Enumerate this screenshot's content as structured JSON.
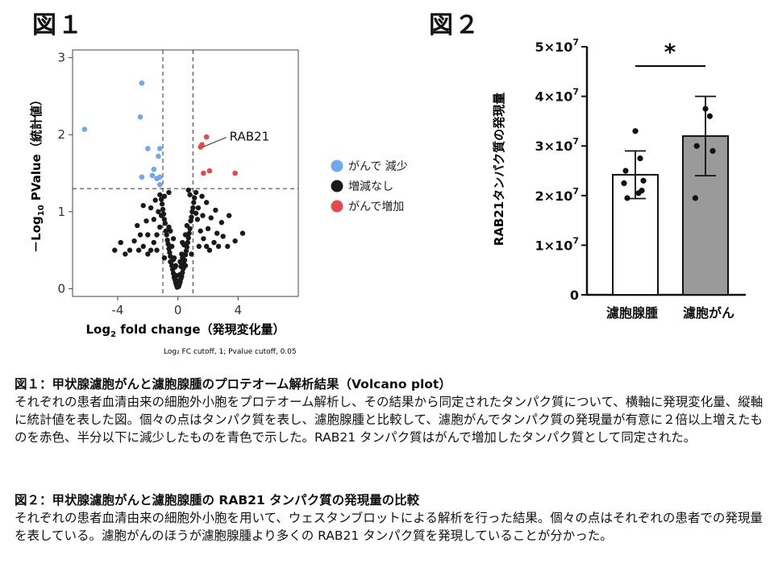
{
  "figure_labels": {
    "fig1": "図１",
    "fig2": "図２"
  },
  "chart_data": [
    {
      "type": "scatter",
      "title": "",
      "xlabel": "Log₂ fold change（発現変化量）",
      "xlabel_parts": {
        "pre": "Log",
        "sub": "2",
        "post": " fold change（発現変化量）"
      },
      "ylabel": "－Log₁₀ PValue（統計値）",
      "ylabel_parts": {
        "pre": "－Log",
        "sub": "10",
        "post": " PValue（統計値）"
      },
      "xlim": [
        -7,
        8
      ],
      "ylim": [
        -0.1,
        3.1
      ],
      "xticks": [
        -4,
        0,
        4
      ],
      "yticks": [
        0,
        1,
        2,
        3
      ],
      "cutoffs": {
        "fc": [
          -1,
          1
        ],
        "pvalue_log": 1.3
      },
      "footnote": "Log₂ FC cutoff, 1; Pvalue cutoff, 0.05",
      "annotation": {
        "label": "RAB21",
        "x": 1.5,
        "y": 1.84
      },
      "legend_position": "right",
      "series": [
        {
          "name": "がんで 減少",
          "color": "#6fa8f0",
          "points": [
            [
              -6.2,
              2.07
            ],
            [
              -2.4,
              2.67
            ],
            [
              -2.5,
              2.23
            ],
            [
              -1.2,
              1.82
            ],
            [
              -1.3,
              1.72
            ],
            [
              -2.0,
              1.82
            ],
            [
              -2.4,
              1.45
            ],
            [
              -1.7,
              1.47
            ],
            [
              -1.4,
              1.43
            ],
            [
              -1.2,
              1.45
            ],
            [
              -1.6,
              1.55
            ],
            [
              -1.2,
              1.35
            ]
          ]
        },
        {
          "name": "増減なし",
          "color": "#1a1a1a",
          "points": [
            [
              -0.05,
              0.02
            ],
            [
              0.05,
              0.03
            ],
            [
              -0.1,
              0.05
            ],
            [
              0.1,
              0.06
            ],
            [
              -0.15,
              0.08
            ],
            [
              0.15,
              0.09
            ],
            [
              0.0,
              0.1
            ],
            [
              -0.2,
              0.12
            ],
            [
              0.2,
              0.13
            ],
            [
              -0.25,
              0.15
            ],
            [
              0.25,
              0.16
            ],
            [
              -0.1,
              0.17
            ],
            [
              0.1,
              0.18
            ],
            [
              -0.3,
              0.2
            ],
            [
              0.3,
              0.21
            ],
            [
              -0.35,
              0.25
            ],
            [
              0.35,
              0.26
            ],
            [
              -0.2,
              0.28
            ],
            [
              0.2,
              0.29
            ],
            [
              -0.4,
              0.3
            ],
            [
              0.4,
              0.32
            ],
            [
              -0.45,
              0.35
            ],
            [
              0.45,
              0.37
            ],
            [
              -0.3,
              0.38
            ],
            [
              0.3,
              0.4
            ],
            [
              -0.5,
              0.42
            ],
            [
              0.5,
              0.44
            ],
            [
              -0.55,
              0.47
            ],
            [
              0.55,
              0.49
            ],
            [
              -0.6,
              0.52
            ],
            [
              0.6,
              0.54
            ],
            [
              -0.4,
              0.55
            ],
            [
              0.4,
              0.57
            ],
            [
              -0.65,
              0.58
            ],
            [
              0.65,
              0.6
            ],
            [
              -0.7,
              0.63
            ],
            [
              0.7,
              0.66
            ],
            [
              -0.75,
              0.7
            ],
            [
              0.75,
              0.72
            ],
            [
              -0.8,
              0.75
            ],
            [
              0.8,
              0.78
            ],
            [
              -0.6,
              0.8
            ],
            [
              0.6,
              0.82
            ],
            [
              -0.85,
              0.85
            ],
            [
              0.85,
              0.88
            ],
            [
              -0.9,
              0.9
            ],
            [
              0.9,
              0.93
            ],
            [
              -0.95,
              0.97
            ],
            [
              0.95,
              1.0
            ],
            [
              -1.0,
              1.03
            ],
            [
              1.0,
              1.05
            ],
            [
              -1.05,
              1.1
            ],
            [
              1.05,
              1.12
            ],
            [
              -1.1,
              1.16
            ],
            [
              1.1,
              1.18
            ],
            [
              -1.2,
              1.22
            ],
            [
              1.2,
              1.25
            ],
            [
              -0.5,
              0.35
            ],
            [
              0.5,
              0.3
            ],
            [
              -0.25,
              0.4
            ],
            [
              0.25,
              0.45
            ],
            [
              -1.2,
              0.8
            ],
            [
              1.3,
              0.9
            ],
            [
              -1.4,
              0.7
            ],
            [
              1.5,
              0.75
            ],
            [
              -1.6,
              0.6
            ],
            [
              1.7,
              0.65
            ],
            [
              -1.8,
              0.5
            ],
            [
              1.9,
              0.55
            ],
            [
              -2.0,
              0.45
            ],
            [
              2.1,
              0.5
            ],
            [
              -2.3,
              0.55
            ],
            [
              2.4,
              0.6
            ],
            [
              -2.6,
              0.5
            ],
            [
              2.7,
              0.55
            ],
            [
              -2.9,
              0.62
            ],
            [
              3.0,
              0.68
            ],
            [
              -3.2,
              0.5
            ],
            [
              3.3,
              0.55
            ],
            [
              -3.5,
              0.45
            ],
            [
              -3.8,
              0.6
            ],
            [
              3.8,
              0.62
            ],
            [
              -4.2,
              0.5
            ],
            [
              4.3,
              0.72
            ],
            [
              -2.1,
              0.88
            ],
            [
              2.2,
              0.92
            ],
            [
              -1.8,
              1.05
            ],
            [
              1.9,
              1.12
            ],
            [
              -1.5,
              1.15
            ],
            [
              1.6,
              1.2
            ],
            [
              -2.3,
              1.08
            ],
            [
              2.5,
              1.02
            ],
            [
              -2.7,
              0.82
            ],
            [
              2.9,
              0.86
            ],
            [
              3.4,
              0.95
            ],
            [
              -1.1,
              0.95
            ],
            [
              1.2,
              0.98
            ],
            [
              -0.9,
              1.2
            ],
            [
              0.8,
              1.22
            ],
            [
              -0.6,
              1.25
            ],
            [
              0.7,
              1.28
            ],
            [
              -1.3,
              1.0
            ],
            [
              1.35,
              1.05
            ],
            [
              -1.6,
              0.9
            ],
            [
              1.65,
              0.95
            ],
            [
              -2.0,
              0.7
            ],
            [
              2.0,
              0.78
            ],
            [
              -2.5,
              0.7
            ],
            [
              2.6,
              0.72
            ],
            [
              0.3,
              0.6
            ],
            [
              -0.3,
              0.65
            ],
            [
              0.5,
              0.7
            ],
            [
              -0.5,
              0.75
            ],
            [
              0.15,
              0.35
            ],
            [
              -0.15,
              0.3
            ],
            [
              1.4,
              0.55
            ],
            [
              -1.4,
              0.5
            ],
            [
              0.9,
              0.45
            ],
            [
              -0.9,
              0.4
            ]
          ]
        },
        {
          "name": "がんで増加",
          "color": "#e8474b",
          "points": [
            [
              1.5,
              1.84
            ],
            [
              1.9,
              1.97
            ],
            [
              1.6,
              1.87
            ],
            [
              2.1,
              1.53
            ],
            [
              1.7,
              1.5
            ],
            [
              3.8,
              1.5
            ]
          ]
        }
      ]
    },
    {
      "type": "bar",
      "title": "",
      "xlabel": "",
      "ylabel": "RAB21タンパク質の発現量",
      "ylim": [
        0,
        50000000
      ],
      "yticks": [
        0,
        10000000,
        20000000,
        30000000,
        40000000,
        50000000
      ],
      "ytick_labels": [
        {
          "value": 0,
          "mant": "0",
          "exp": ""
        },
        {
          "value": 10000000,
          "mant": "1×10",
          "exp": "7"
        },
        {
          "value": 20000000,
          "mant": "2×10",
          "exp": "7"
        },
        {
          "value": 30000000,
          "mant": "3×10",
          "exp": "7"
        },
        {
          "value": 40000000,
          "mant": "4×10",
          "exp": "7"
        },
        {
          "value": 50000000,
          "mant": "5×10",
          "exp": "7"
        }
      ],
      "categories": [
        "濾胞腺腫",
        "濾胞がん"
      ],
      "values": [
        24200000,
        32000000
      ],
      "errors": [
        4800000,
        8000000
      ],
      "bar_colors": [
        "#ffffff",
        "#9a9a9a"
      ],
      "points": [
        [
          33000000,
          27500000,
          25000000,
          23000000,
          22500000,
          21000000,
          19500000,
          20500000
        ],
        [
          37500000,
          36000000,
          30000000,
          29000000,
          19500000
        ]
      ],
      "significance": "*"
    }
  ],
  "captions": {
    "fig1_title": "図１：甲状腺濾胞がんと濾胞腺腫のプロテオーム解析結果（Volcano plot）",
    "fig1_body": "それぞれの患者血清由来の細胞外小胞をプロテオーム解析し、その結果から同定されたタンパク質について、横軸に発現変化量、縦軸に統計値を表した図。個々の点はタンパク質を表し、濾胞腺腫と比較して、濾胞がんでタンパク質の発現量が有意に２倍以上増えたものを赤色、半分以下に減少したものを青色で示した。RAB21 タンパク質はがんで増加したタンパク質として同定された。",
    "fig2_title": "図２：甲状腺濾胞がんと濾胞腺腫の RAB21 タンパク質の発現量の比較",
    "fig2_body": "それぞれの患者血清由来の細胞外小胞を用いて、ウェスタンブロットによる解析を行った結果。個々の点はそれぞれの患者での発現量を表している。濾胞がんのほうが濾胞腺腫より多くの RAB21 タンパク質を発現していることが分かった。"
  }
}
